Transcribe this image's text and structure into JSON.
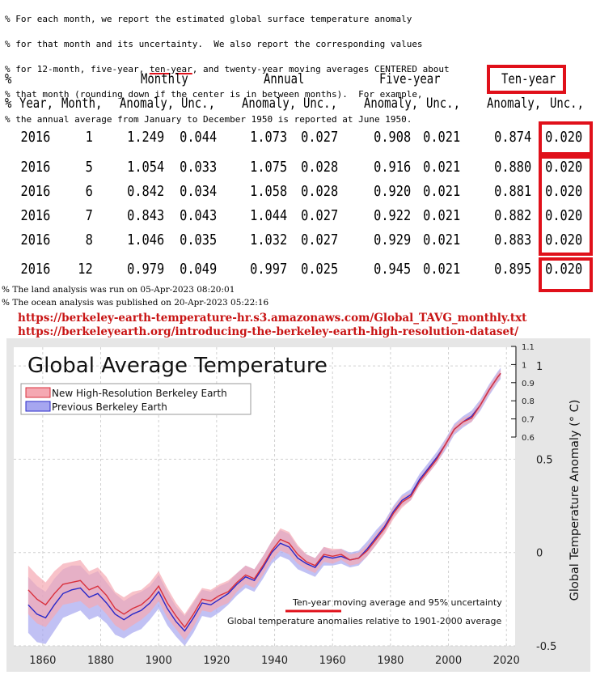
{
  "comments": {
    "line1": "% For each month, we report the estimated global surface temperature anomaly",
    "line2": "% for that month and its uncertainty.  We also report the corresponding values",
    "line3_pre": "% for 12-month, five-year, ",
    "line3_ul": "ten-year",
    "line3_post": ", and twenty-year moving averages CENTERED about",
    "line4": "% that month (rounding down if the center is in between months).  For example,",
    "line5": "% the annual average from January to December 1950 is reported at June 1950."
  },
  "table": {
    "group_headers": {
      "percent": "%",
      "monthly": "Monthly",
      "annual": "Annual",
      "five_year": "Five-year",
      "ten_year": "Ten-year"
    },
    "column_headers": {
      "percent": "%",
      "year": "Year,",
      "month": "Month,",
      "m_anom": "Anomaly,",
      "m_unc": "Unc.,",
      "a_anom": "Anomaly,",
      "a_unc": "Unc.,",
      "f_anom": "Anomaly,",
      "f_unc": "Unc.,",
      "t_anom": "Anomaly,",
      "t_unc": "Unc.,"
    },
    "rows": [
      [
        "2016",
        "1",
        "1.249",
        "0.044",
        "1.073",
        "0.027",
        "0.908",
        "0.021",
        "0.874",
        "0.020"
      ],
      [
        "2016",
        "5",
        "1.054",
        "0.033",
        "1.075",
        "0.028",
        "0.916",
        "0.021",
        "0.880",
        "0.020"
      ],
      [
        "2016",
        "6",
        "0.842",
        "0.034",
        "1.058",
        "0.028",
        "0.920",
        "0.021",
        "0.881",
        "0.020"
      ],
      [
        "2016",
        "7",
        "0.843",
        "0.043",
        "1.044",
        "0.027",
        "0.922",
        "0.021",
        "0.882",
        "0.020"
      ],
      [
        "2016",
        "8",
        "1.046",
        "0.035",
        "1.032",
        "0.027",
        "0.929",
        "0.021",
        "0.883",
        "0.020"
      ],
      [
        "2016",
        "12",
        "0.979",
        "0.049",
        "0.997",
        "0.025",
        "0.945",
        "0.021",
        "0.895",
        "0.020"
      ]
    ]
  },
  "notes": {
    "land": "% The land analysis was run on 05-Apr-2023 08:20:01",
    "ocean": "% The ocean analysis was published on 20-Apr-2023 05:22:16"
  },
  "links": {
    "link1": "https://berkeley-earth-temperature-hr.s3.amazonaws.com/Global_TAVG_monthly.txt",
    "link2": "https://berkeleyearth.org/introducing-the-berkeley-earth-high-resolution-dataset/"
  },
  "colors": {
    "accent_red": "#e0101a",
    "link_red": "#c81414",
    "hr_line": "#d9303c",
    "hr_band": "#f5a8b2",
    "prev_line": "#2929c8",
    "prev_band": "#a6a6f0"
  },
  "chart_data": {
    "type": "line",
    "title": "Global Average Temperature",
    "ylabel": "Global Temperature Anomaly (° C)",
    "xlabel": "",
    "xlim": [
      1850,
      2023
    ],
    "ylim": [
      -0.5,
      1.1
    ],
    "x_ticks": [
      "1860",
      "1880",
      "1900",
      "1920",
      "1940",
      "1960",
      "1980",
      "2000",
      "2020"
    ],
    "y_ticks": [
      "-0.5",
      "0",
      "0.5",
      "1"
    ],
    "inset_ticks": [
      "1.1",
      "1",
      "0.9",
      "0.8",
      "0.7",
      "0.6"
    ],
    "legend": [
      "New High-Resolution Berkeley Earth",
      "Previous Berkeley Earth"
    ],
    "annotation_1": "Ten-year moving average and 95% uncertainty",
    "annotation_2": "Global temperature anomalies relative to 1901-2000 average",
    "series": [
      {
        "name": "New High-Resolution Berkeley Earth",
        "x": [
          1855,
          1858,
          1861,
          1864,
          1867,
          1870,
          1873,
          1876,
          1879,
          1882,
          1885,
          1888,
          1891,
          1894,
          1897,
          1900,
          1903,
          1906,
          1909,
          1912,
          1915,
          1918,
          1921,
          1924,
          1927,
          1930,
          1933,
          1936,
          1939,
          1942,
          1945,
          1948,
          1951,
          1954,
          1957,
          1960,
          1963,
          1966,
          1969,
          1972,
          1975,
          1978,
          1981,
          1984,
          1987,
          1990,
          1993,
          1996,
          1999,
          2002,
          2005,
          2008,
          2011,
          2014,
          2017,
          2018
        ],
        "values": [
          -0.2,
          -0.25,
          -0.28,
          -0.22,
          -0.17,
          -0.16,
          -0.15,
          -0.2,
          -0.18,
          -0.23,
          -0.3,
          -0.33,
          -0.3,
          -0.28,
          -0.24,
          -0.18,
          -0.27,
          -0.34,
          -0.4,
          -0.33,
          -0.25,
          -0.26,
          -0.23,
          -0.21,
          -0.16,
          -0.12,
          -0.14,
          -0.07,
          0.01,
          0.07,
          0.05,
          -0.01,
          -0.05,
          -0.07,
          -0.01,
          -0.02,
          -0.01,
          -0.04,
          -0.03,
          0.01,
          0.07,
          0.13,
          0.21,
          0.27,
          0.3,
          0.38,
          0.44,
          0.5,
          0.58,
          0.66,
          0.7,
          0.72,
          0.79,
          0.87,
          0.94,
          0.96
        ],
        "uncertainty": [
          0.13,
          0.13,
          0.12,
          0.12,
          0.11,
          0.11,
          0.11,
          0.1,
          0.1,
          0.1,
          0.09,
          0.09,
          0.09,
          0.08,
          0.08,
          0.08,
          0.08,
          0.07,
          0.07,
          0.07,
          0.06,
          0.06,
          0.06,
          0.06,
          0.05,
          0.05,
          0.05,
          0.05,
          0.05,
          0.06,
          0.06,
          0.05,
          0.04,
          0.04,
          0.04,
          0.04,
          0.03,
          0.03,
          0.03,
          0.03,
          0.03,
          0.03,
          0.03,
          0.03,
          0.02,
          0.02,
          0.02,
          0.02,
          0.02,
          0.02,
          0.02,
          0.02,
          0.02,
          0.02,
          0.02,
          0.02
        ]
      },
      {
        "name": "Previous Berkeley Earth",
        "x": [
          1855,
          1858,
          1861,
          1864,
          1867,
          1870,
          1873,
          1876,
          1879,
          1882,
          1885,
          1888,
          1891,
          1894,
          1897,
          1900,
          1903,
          1906,
          1909,
          1912,
          1915,
          1918,
          1921,
          1924,
          1927,
          1930,
          1933,
          1936,
          1939,
          1942,
          1945,
          1948,
          1951,
          1954,
          1957,
          1960,
          1963,
          1966,
          1969,
          1972,
          1975,
          1978,
          1981,
          1984,
          1987,
          1990,
          1993,
          1996,
          1999,
          2002,
          2005,
          2008,
          2011,
          2014,
          2017,
          2018
        ],
        "values": [
          -0.28,
          -0.33,
          -0.35,
          -0.28,
          -0.22,
          -0.2,
          -0.19,
          -0.24,
          -0.22,
          -0.27,
          -0.33,
          -0.36,
          -0.33,
          -0.31,
          -0.27,
          -0.21,
          -0.3,
          -0.37,
          -0.42,
          -0.35,
          -0.27,
          -0.28,
          -0.25,
          -0.22,
          -0.17,
          -0.13,
          -0.15,
          -0.08,
          0.0,
          0.05,
          0.03,
          -0.03,
          -0.06,
          -0.08,
          -0.02,
          -0.03,
          -0.02,
          -0.04,
          -0.03,
          0.02,
          0.08,
          0.14,
          0.22,
          0.28,
          0.31,
          0.39,
          0.45,
          0.51,
          0.58,
          0.66,
          0.7,
          0.73,
          0.79,
          0.87,
          0.94,
          0.96
        ],
        "uncertainty": [
          0.15,
          0.15,
          0.14,
          0.14,
          0.13,
          0.13,
          0.12,
          0.12,
          0.12,
          0.11,
          0.11,
          0.1,
          0.1,
          0.1,
          0.09,
          0.09,
          0.09,
          0.08,
          0.08,
          0.08,
          0.07,
          0.07,
          0.07,
          0.06,
          0.06,
          0.06,
          0.06,
          0.06,
          0.06,
          0.07,
          0.07,
          0.06,
          0.05,
          0.05,
          0.05,
          0.04,
          0.04,
          0.04,
          0.04,
          0.04,
          0.04,
          0.03,
          0.03,
          0.03,
          0.03,
          0.03,
          0.03,
          0.03,
          0.03,
          0.03,
          0.03,
          0.03,
          0.03,
          0.03,
          0.03,
          0.03
        ]
      }
    ]
  }
}
